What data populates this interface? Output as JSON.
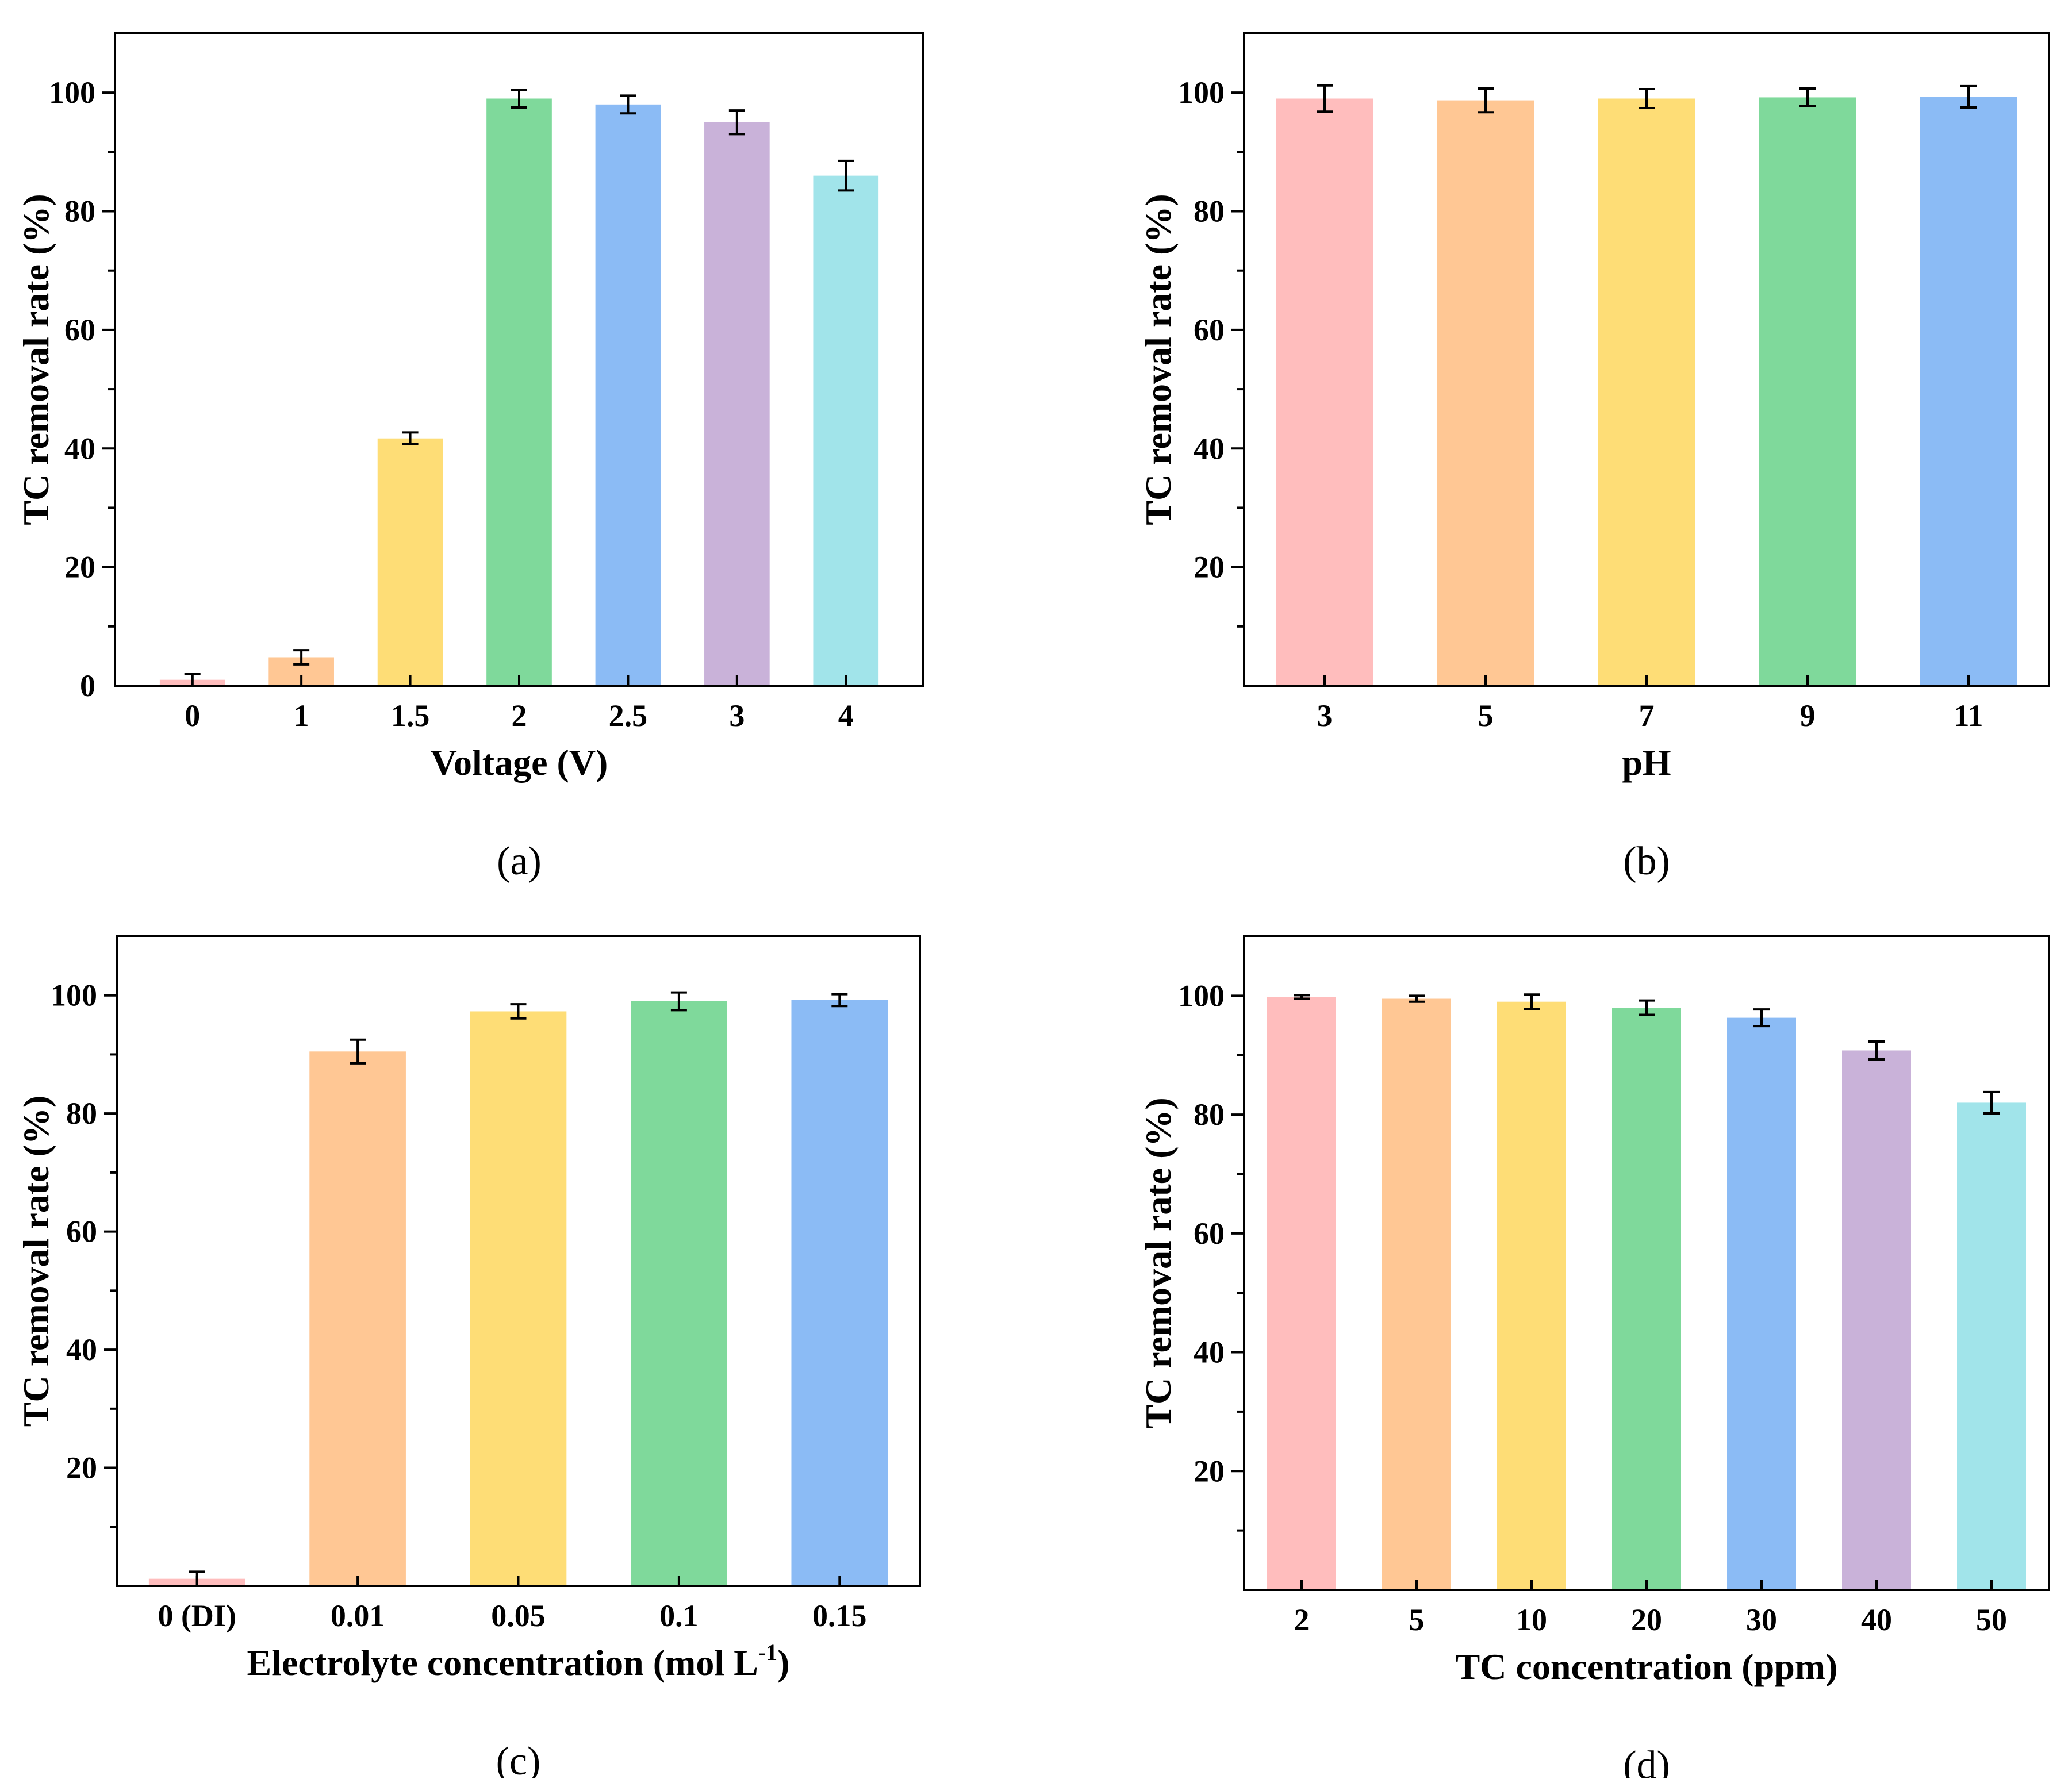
{
  "colors": {
    "pink": "#FFBDBD",
    "orange": "#FFC794",
    "yellow": "#FEDD76",
    "green": "#7FD99B",
    "blue": "#8BBBF5",
    "purple": "#C9B2D9",
    "cyan": "#A1E4EA",
    "axis": "#000000"
  },
  "chart_data": [
    {
      "id": "a",
      "type": "bar",
      "panel_label": "(a)",
      "title": "",
      "xlabel": "Voltage (V)",
      "ylabel": "TC removal rate (%)",
      "ylim": [
        0,
        110
      ],
      "yticks": [
        0,
        20,
        40,
        60,
        80,
        100
      ],
      "categories": [
        "0",
        "1",
        "1.5",
        "2",
        "2.5",
        "3",
        "4"
      ],
      "values": [
        1.0,
        4.8,
        41.7,
        99.0,
        98.0,
        95.0,
        86.0
      ],
      "errors": [
        1.0,
        1.2,
        1.0,
        1.5,
        1.5,
        2.0,
        2.5
      ],
      "bar_colors": [
        "#FFBDBD",
        "#FFC794",
        "#FEDD76",
        "#7FD99B",
        "#8BBBF5",
        "#C9B2D9",
        "#A1E4EA"
      ]
    },
    {
      "id": "b",
      "type": "bar",
      "panel_label": "(b)",
      "title": "",
      "xlabel": "pH",
      "ylabel": "TC removal rate (%)",
      "ylim": [
        0,
        110
      ],
      "yticks": [
        20,
        40,
        60,
        80,
        100
      ],
      "categories": [
        "3",
        "5",
        "7",
        "9",
        "11"
      ],
      "values": [
        99.0,
        98.7,
        99.0,
        99.2,
        99.3
      ],
      "errors": [
        2.2,
        2.0,
        1.6,
        1.5,
        1.8
      ],
      "bar_colors": [
        "#FFBDBD",
        "#FFC794",
        "#FEDD76",
        "#7FD99B",
        "#8BBBF5"
      ]
    },
    {
      "id": "c",
      "type": "bar",
      "panel_label": "(c)",
      "title": "",
      "xlabel": "Electrolyte concentration (mol L",
      "xlabel_sup": "-1",
      "xlabel_end": ")",
      "ylabel": "TC removal rate (%)",
      "ylim": [
        0,
        110
      ],
      "yticks": [
        20,
        40,
        60,
        80,
        100
      ],
      "categories": [
        "0 (DI)",
        "0.01",
        "0.05",
        "0.1",
        "0.15"
      ],
      "values": [
        1.2,
        90.5,
        97.3,
        99.0,
        99.2
      ],
      "errors": [
        1.2,
        2.0,
        1.2,
        1.5,
        1.0
      ],
      "bar_colors": [
        "#FFBDBD",
        "#FFC794",
        "#FEDD76",
        "#7FD99B",
        "#8BBBF5"
      ]
    },
    {
      "id": "d",
      "type": "bar",
      "panel_label": "(d)",
      "title": "",
      "xlabel": "TC concentration (ppm)",
      "ylabel": "TC removal rate (%)",
      "ylim": [
        0,
        110
      ],
      "yticks": [
        20,
        40,
        60,
        80,
        100
      ],
      "categories": [
        "2",
        "5",
        "10",
        "20",
        "30",
        "40",
        "50"
      ],
      "values": [
        99.8,
        99.5,
        99.0,
        98.0,
        96.3,
        90.8,
        82.0
      ],
      "errors": [
        0.3,
        0.5,
        1.2,
        1.2,
        1.4,
        1.5,
        1.8
      ],
      "bar_colors": [
        "#FFBDBD",
        "#FFC794",
        "#FEDD76",
        "#7FD99B",
        "#8BBBF5",
        "#C9B2D9",
        "#A1E4EA"
      ]
    }
  ]
}
